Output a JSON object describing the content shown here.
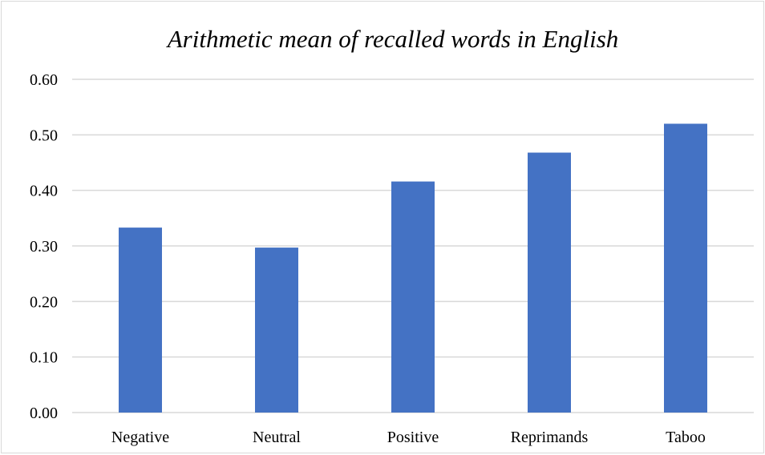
{
  "chart_data": {
    "type": "bar",
    "title": "Arithmetic mean of recalled words in English",
    "xlabel": "",
    "ylabel": "",
    "categories": [
      "Negative",
      "Neutral",
      "Positive",
      "Reprimands",
      "Taboo"
    ],
    "values": [
      0.333,
      0.297,
      0.416,
      0.468,
      0.52
    ],
    "ylim": [
      0,
      0.6
    ],
    "yticks": [
      "0.00",
      "0.10",
      "0.20",
      "0.30",
      "0.40",
      "0.50",
      "0.60"
    ],
    "grid": true,
    "legend": "none",
    "bar_color": "#4472C4"
  }
}
